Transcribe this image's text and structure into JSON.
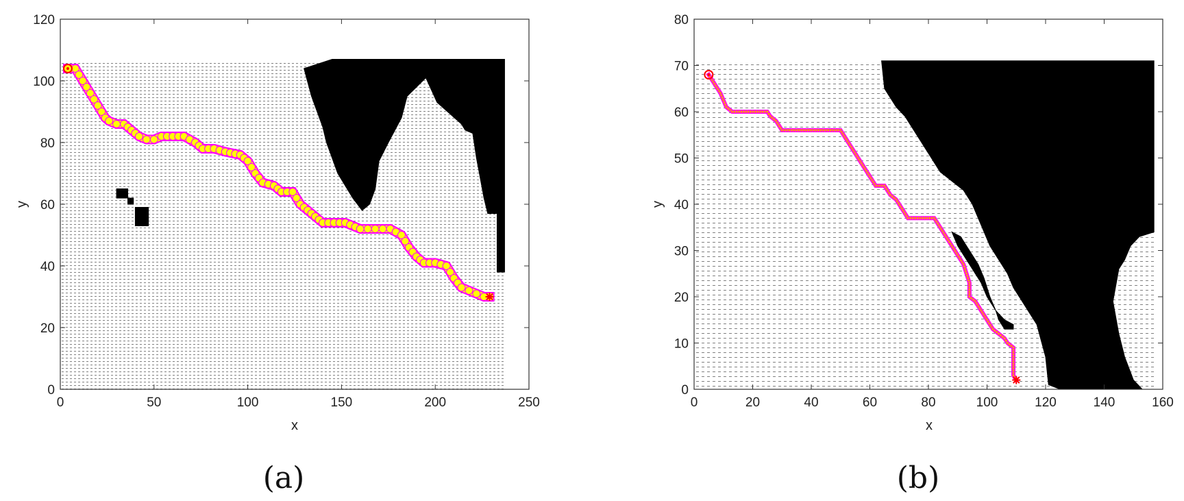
{
  "chart_data": [
    {
      "type": "scatter",
      "panel_label": "(a)",
      "xlabel": "x",
      "ylabel": "y",
      "xlim": [
        0,
        250
      ],
      "ylim": [
        0,
        120
      ],
      "xticks": [
        0,
        50,
        100,
        150,
        200,
        250
      ],
      "yticks": [
        0,
        20,
        40,
        60,
        80,
        100,
        120
      ],
      "field_extent": {
        "x": [
          0,
          237
        ],
        "y": [
          0,
          106
        ]
      },
      "land": [
        [
          [
            145,
            107
          ],
          [
            237,
            107
          ],
          [
            237,
            38
          ],
          [
            233,
            38
          ],
          [
            233,
            57
          ],
          [
            228,
            57
          ],
          [
            226,
            62
          ],
          [
            222,
            75
          ],
          [
            220,
            83
          ],
          [
            216,
            84
          ],
          [
            214,
            86
          ],
          [
            201,
            93
          ],
          [
            195,
            101
          ],
          [
            185,
            95
          ],
          [
            182,
            88
          ],
          [
            175,
            80
          ],
          [
            170,
            74
          ],
          [
            168,
            65
          ],
          [
            165,
            60
          ],
          [
            161,
            58
          ],
          [
            156,
            62
          ],
          [
            148,
            70
          ],
          [
            142,
            80
          ],
          [
            140,
            85
          ],
          [
            134,
            95
          ],
          [
            130,
            104
          ],
          [
            145,
            107
          ]
        ],
        [
          [
            30,
            62
          ],
          [
            36,
            62
          ],
          [
            36,
            65
          ],
          [
            30,
            65
          ]
        ],
        [
          [
            36,
            60
          ],
          [
            39,
            60
          ],
          [
            39,
            62
          ],
          [
            36,
            62
          ]
        ],
        [
          [
            40,
            53
          ],
          [
            47,
            53
          ],
          [
            47,
            59
          ],
          [
            40,
            59
          ]
        ]
      ],
      "path": [
        [
          4,
          104
        ],
        [
          8,
          104
        ],
        [
          10,
          102
        ],
        [
          12,
          100
        ],
        [
          14,
          98
        ],
        [
          16,
          96
        ],
        [
          18,
          94
        ],
        [
          20,
          92
        ],
        [
          22,
          90
        ],
        [
          24,
          88
        ],
        [
          26,
          87
        ],
        [
          30,
          86
        ],
        [
          34,
          86
        ],
        [
          38,
          84
        ],
        [
          42,
          82
        ],
        [
          46,
          81
        ],
        [
          50,
          81
        ],
        [
          54,
          82
        ],
        [
          60,
          82
        ],
        [
          66,
          82
        ],
        [
          72,
          80
        ],
        [
          76,
          78
        ],
        [
          82,
          78
        ],
        [
          88,
          77
        ],
        [
          96,
          76
        ],
        [
          100,
          74
        ],
        [
          104,
          70
        ],
        [
          108,
          67
        ],
        [
          114,
          66
        ],
        [
          118,
          64
        ],
        [
          124,
          64
        ],
        [
          128,
          60
        ],
        [
          132,
          58
        ],
        [
          136,
          56
        ],
        [
          140,
          54
        ],
        [
          146,
          54
        ],
        [
          152,
          54
        ],
        [
          160,
          52
        ],
        [
          168,
          52
        ],
        [
          176,
          52
        ],
        [
          182,
          50
        ],
        [
          186,
          46
        ],
        [
          190,
          43
        ],
        [
          194,
          41
        ],
        [
          200,
          41
        ],
        [
          206,
          40
        ],
        [
          210,
          36
        ],
        [
          214,
          33
        ],
        [
          218,
          32
        ],
        [
          222,
          31
        ],
        [
          226,
          30
        ],
        [
          229,
          30
        ]
      ],
      "start": [
        4,
        104
      ],
      "goal": [
        229,
        30
      ],
      "path_color": "#ff00ff",
      "marker_color": "#ffff00",
      "start_marker_color": "#ff0000"
    },
    {
      "type": "scatter",
      "panel_label": "(b)",
      "xlabel": "x",
      "ylabel": "y",
      "xlim": [
        0,
        160
      ],
      "ylim": [
        0,
        80
      ],
      "xticks": [
        0,
        20,
        40,
        60,
        80,
        100,
        120,
        140,
        160
      ],
      "yticks": [
        0,
        10,
        20,
        30,
        40,
        50,
        60,
        70,
        80
      ],
      "field_extent": {
        "x": [
          0,
          157
        ],
        "y": [
          0,
          71
        ]
      },
      "land": [
        [
          [
            64,
            71
          ],
          [
            157,
            71
          ],
          [
            157,
            34
          ],
          [
            152,
            33
          ],
          [
            149,
            31
          ],
          [
            147,
            28
          ],
          [
            145,
            26
          ],
          [
            143,
            19
          ],
          [
            145,
            12
          ],
          [
            147,
            7
          ],
          [
            150,
            2
          ],
          [
            153,
            0
          ],
          [
            125,
            0
          ],
          [
            121,
            1
          ],
          [
            120,
            7
          ],
          [
            117,
            14
          ],
          [
            113,
            18
          ],
          [
            111,
            20
          ],
          [
            109,
            22
          ],
          [
            107,
            25
          ],
          [
            105,
            27
          ],
          [
            103,
            29
          ],
          [
            101,
            31
          ],
          [
            99,
            34
          ],
          [
            97,
            37
          ],
          [
            95,
            40
          ],
          [
            92,
            43
          ],
          [
            88,
            45
          ],
          [
            84,
            47
          ],
          [
            80,
            51
          ],
          [
            76,
            55
          ],
          [
            72,
            59
          ],
          [
            69,
            61
          ],
          [
            67,
            63
          ],
          [
            65,
            65
          ],
          [
            64,
            71
          ]
        ],
        [
          [
            88,
            34
          ],
          [
            91,
            33
          ],
          [
            94,
            30
          ],
          [
            97,
            27
          ],
          [
            99,
            24
          ],
          [
            101,
            20
          ],
          [
            103,
            17
          ],
          [
            106,
            15
          ],
          [
            109,
            14
          ],
          [
            109,
            13
          ],
          [
            106,
            13
          ],
          [
            104,
            15
          ],
          [
            103,
            17
          ],
          [
            100,
            20
          ],
          [
            98,
            23
          ],
          [
            95,
            26
          ],
          [
            93,
            28
          ],
          [
            90,
            31
          ],
          [
            88,
            34
          ]
        ]
      ],
      "path": [
        [
          5,
          68
        ],
        [
          7,
          66
        ],
        [
          9,
          64
        ],
        [
          11,
          61
        ],
        [
          13,
          60
        ],
        [
          17,
          60
        ],
        [
          21,
          60
        ],
        [
          25,
          60
        ],
        [
          26,
          59
        ],
        [
          28,
          58
        ],
        [
          30,
          56
        ],
        [
          40,
          56
        ],
        [
          50,
          56
        ],
        [
          52,
          54
        ],
        [
          54,
          52
        ],
        [
          56,
          50
        ],
        [
          58,
          48
        ],
        [
          60,
          46
        ],
        [
          62,
          44
        ],
        [
          65,
          44
        ],
        [
          67,
          42
        ],
        [
          69,
          41
        ],
        [
          71,
          39
        ],
        [
          73,
          37
        ],
        [
          78,
          37
        ],
        [
          82,
          37
        ],
        [
          84,
          35
        ],
        [
          86,
          33
        ],
        [
          88,
          31
        ],
        [
          90,
          29
        ],
        [
          92,
          27
        ],
        [
          93,
          25
        ],
        [
          94,
          23
        ],
        [
          94,
          20
        ],
        [
          96,
          19
        ],
        [
          98,
          17
        ],
        [
          100,
          15
        ],
        [
          102,
          13
        ],
        [
          104,
          12
        ],
        [
          106,
          11
        ],
        [
          107,
          10
        ],
        [
          109,
          9
        ],
        [
          109,
          6
        ],
        [
          109,
          3
        ],
        [
          110,
          2
        ]
      ],
      "start": [
        5,
        68
      ],
      "goal": [
        110,
        2
      ],
      "path_color": "#ff00ff",
      "marker_color": "#ff9900",
      "start_marker_color": "#ff0000"
    }
  ]
}
